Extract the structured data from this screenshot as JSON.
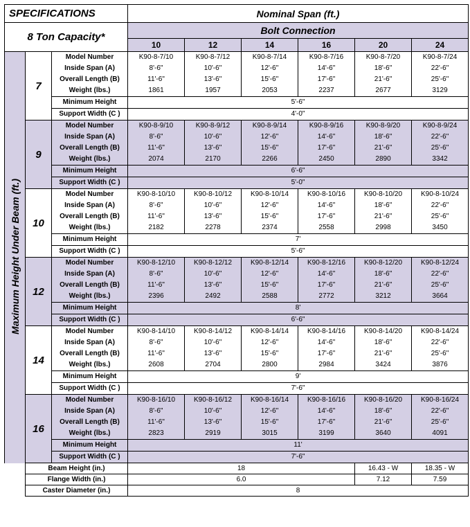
{
  "titles": {
    "specs": "SPECIFICATIONS",
    "nominal_span": "Nominal Span (ft.)",
    "capacity": "8 Ton Capacity*",
    "bolt": "Bolt Connection",
    "max_height": "Maximum Height Under Beam (ft.)"
  },
  "span_cols": [
    "10",
    "12",
    "14",
    "16",
    "20",
    "24"
  ],
  "attrs": [
    "Model Number",
    "Inside Span (A)",
    "Overall Length (B)",
    "Weight (lbs.)",
    "Minimum Height",
    "Support Width (C )"
  ],
  "groups": [
    {
      "h": "7",
      "shade": false,
      "rows": [
        [
          "K90-8-7/10",
          "K90-8-7/12",
          "K90-8-7/14",
          "K90-8-7/16",
          "K90-8-7/20",
          "K90-8-7/24"
        ],
        [
          "8'-6\"",
          "10'-6\"",
          "12'-6\"",
          "14'-6\"",
          "18'-6\"",
          "22'-6\""
        ],
        [
          "11'-6\"",
          "13'-6\"",
          "15'-6\"",
          "17'-6\"",
          "21'-6\"",
          "25'-6\""
        ],
        [
          "1861",
          "1957",
          "2053",
          "2237",
          "2677",
          "3129"
        ]
      ],
      "min_h": "5'-6\"",
      "sup_w": "4'-0\""
    },
    {
      "h": "9",
      "shade": true,
      "rows": [
        [
          "K90-8-9/10",
          "K90-8-9/12",
          "K90-8-9/14",
          "K90-8-9/16",
          "K90-8-9/20",
          "K90-8-9/24"
        ],
        [
          "8'-6\"",
          "10'-6\"",
          "12'-6\"",
          "14'-6\"",
          "18'-6\"",
          "22'-6\""
        ],
        [
          "11'-6\"",
          "13'-6\"",
          "15'-6\"",
          "17'-6\"",
          "21'-6\"",
          "25'-6\""
        ],
        [
          "2074",
          "2170",
          "2266",
          "2450",
          "2890",
          "3342"
        ]
      ],
      "min_h": "6'-6\"",
      "sup_w": "5'-0\""
    },
    {
      "h": "10",
      "shade": false,
      "rows": [
        [
          "K90-8-10/10",
          "K90-8-10/12",
          "K90-8-10/14",
          "K90-8-10/16",
          "K90-8-10/20",
          "K90-8-10/24"
        ],
        [
          "8'-6\"",
          "10'-6\"",
          "12'-6\"",
          "14'-6\"",
          "18'-6\"",
          "22'-6\""
        ],
        [
          "11'-6\"",
          "13'-6\"",
          "15'-6\"",
          "17'-6\"",
          "21'-6\"",
          "25'-6\""
        ],
        [
          "2182",
          "2278",
          "2374",
          "2558",
          "2998",
          "3450"
        ]
      ],
      "min_h": "7'",
      "sup_w": "5'-6\""
    },
    {
      "h": "12",
      "shade": true,
      "rows": [
        [
          "K90-8-12/10",
          "K90-8-12/12",
          "K90-8-12/14",
          "K90-8-12/16",
          "K90-8-12/20",
          "K90-8-12/24"
        ],
        [
          "8'-6\"",
          "10'-6\"",
          "12'-6\"",
          "14'-6\"",
          "18'-6\"",
          "22'-6\""
        ],
        [
          "11'-6\"",
          "13'-6\"",
          "15'-6\"",
          "17'-6\"",
          "21'-6\"",
          "25'-6\""
        ],
        [
          "2396",
          "2492",
          "2588",
          "2772",
          "3212",
          "3664"
        ]
      ],
      "min_h": "8'",
      "sup_w": "6'-6\""
    },
    {
      "h": "14",
      "shade": false,
      "rows": [
        [
          "K90-8-14/10",
          "K90-8-14/12",
          "K90-8-14/14",
          "K90-8-14/16",
          "K90-8-14/20",
          "K90-8-14/24"
        ],
        [
          "8'-6\"",
          "10'-6\"",
          "12'-6\"",
          "14'-6\"",
          "18'-6\"",
          "22'-6\""
        ],
        [
          "11'-6\"",
          "13'-6\"",
          "15'-6\"",
          "17'-6\"",
          "21'-6\"",
          "25'-6\""
        ],
        [
          "2608",
          "2704",
          "2800",
          "2984",
          "3424",
          "3876"
        ]
      ],
      "min_h": "9'",
      "sup_w": "7'-6\""
    },
    {
      "h": "16",
      "shade": true,
      "rows": [
        [
          "K90-8-16/10",
          "K90-8-16/12",
          "K90-8-16/14",
          "K90-8-16/16",
          "K90-8-16/20",
          "K90-8-16/24"
        ],
        [
          "8'-6\"",
          "10'-6\"",
          "12'-6\"",
          "14'-6\"",
          "18'-6\"",
          "22'-6\""
        ],
        [
          "11'-6\"",
          "13'-6\"",
          "15'-6\"",
          "17'-6\"",
          "21'-6\"",
          "25'-6\""
        ],
        [
          "2823",
          "2919",
          "3015",
          "3199",
          "3640",
          "4091"
        ]
      ],
      "min_h": "11'",
      "sup_w": "7'-6\""
    }
  ],
  "footer": [
    {
      "label": "Beam Height (in.)",
      "vals": [
        "18",
        "16.43 - W",
        "18.35 - W"
      ],
      "spans": [
        4,
        1,
        1
      ]
    },
    {
      "label": "Flange Width (in.)",
      "vals": [
        "6.0",
        "7.12",
        "7.59"
      ],
      "spans": [
        4,
        1,
        1
      ]
    },
    {
      "label": "Caster Diameter (in.)",
      "vals": [
        "8"
      ],
      "spans": [
        6
      ]
    }
  ]
}
